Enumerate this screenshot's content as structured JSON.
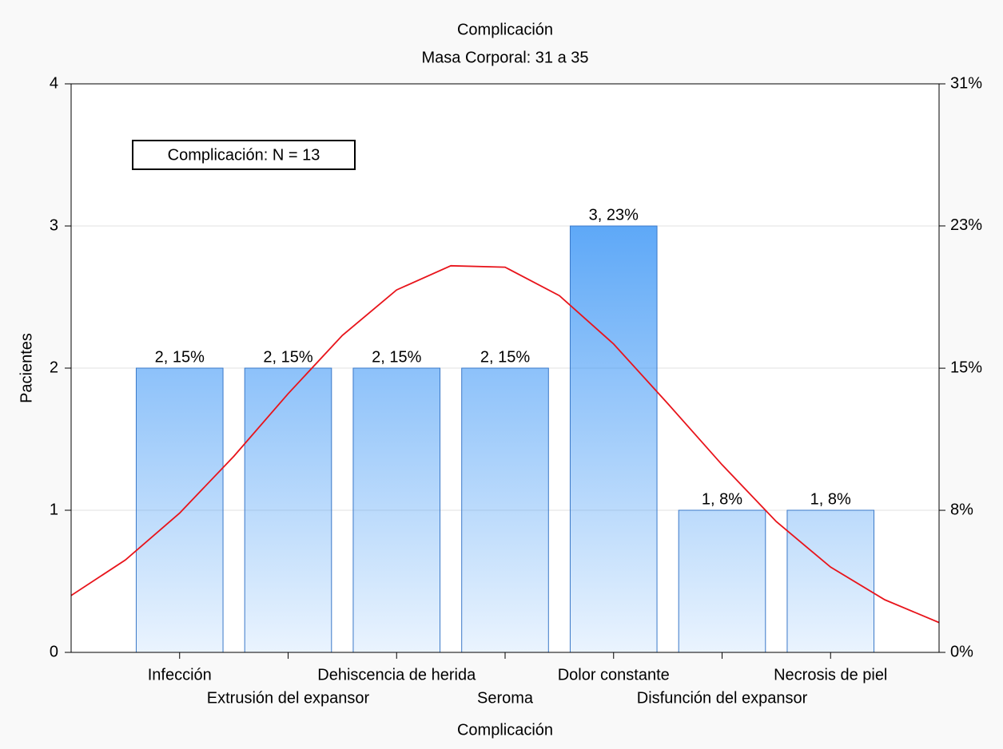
{
  "chart_data": {
    "type": "bar",
    "title": "Complicación",
    "subtitle": "Masa Corporal: 31 a 35",
    "y_label": "Pacientes",
    "x_label": "Complicación",
    "annotation": "Complicación:  N = 13",
    "categories": [
      "Infección",
      "Extrusión del expansor",
      "Dehiscencia de herida",
      "Seroma",
      "Dolor constante",
      "Disfunción del expansor",
      "Necrosis de piel"
    ],
    "values": [
      2,
      2,
      2,
      2,
      3,
      1,
      1
    ],
    "value_labels": [
      "2, 15%",
      "2, 15%",
      "2, 15%",
      "2, 15%",
      "3, 23%",
      "1, 8%",
      "1, 8%"
    ],
    "color": "#2f8ff5",
    "ylim": [
      0,
      4
    ],
    "yticks": [
      0,
      1,
      2,
      3,
      4
    ],
    "y2lim": [
      0,
      30.77
    ],
    "y2ticks": [
      {
        "value": 0,
        "label": "0%"
      },
      {
        "value": 7.69,
        "label": "8%"
      },
      {
        "value": 15.38,
        "label": "15%"
      },
      {
        "value": 23.08,
        "label": "23%"
      },
      {
        "value": 30.77,
        "label": "31%"
      }
    ],
    "grid": true,
    "fit_curve": {
      "color": "#e8141b",
      "x": [
        -1,
        -0.5,
        0,
        0.5,
        1,
        1.5,
        2,
        2.5,
        3,
        3.5,
        4,
        4.5,
        5,
        5.5,
        6,
        6.5,
        7
      ],
      "values": [
        0.4,
        0.65,
        0.98,
        1.38,
        1.82,
        2.23,
        2.55,
        2.72,
        2.71,
        2.51,
        2.17,
        1.75,
        1.32,
        0.92,
        0.6,
        0.37,
        0.21
      ]
    }
  }
}
